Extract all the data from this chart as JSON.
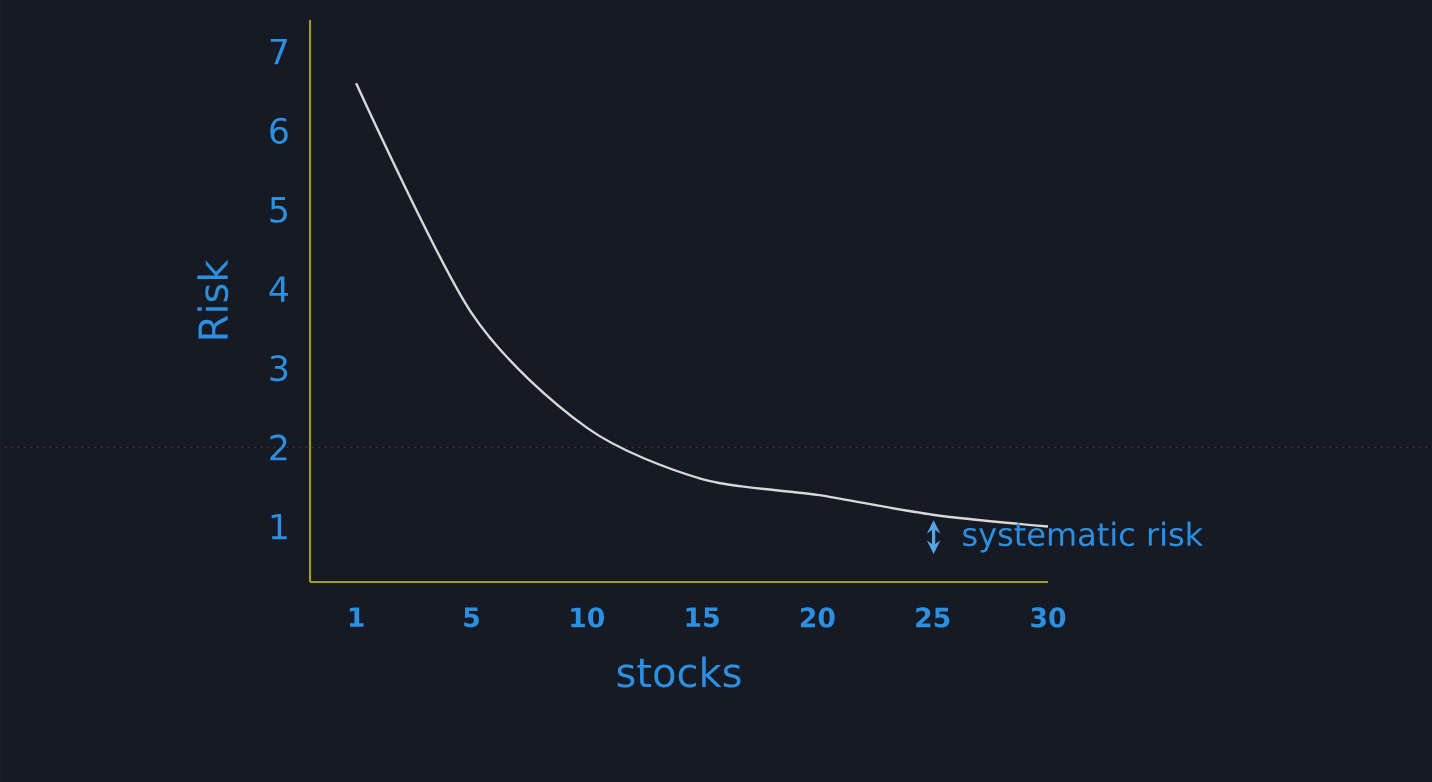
{
  "chart_data": {
    "type": "line",
    "xlabel": "stocks",
    "ylabel": "Risk",
    "categories": [
      "1",
      "5",
      "10",
      "15",
      "20",
      "25",
      "30"
    ],
    "series": [
      {
        "color": "#d8d8d8",
        "values": [
          6.6,
          3.7,
          2.25,
          1.6,
          1.4,
          1.15,
          1.0
        ]
      }
    ],
    "ylim": [
      0.3,
      7.4
    ],
    "yticks": [
      1,
      2,
      3,
      4,
      5,
      6,
      7
    ],
    "ref_lines": [
      {
        "axis": "y",
        "value": 2,
        "color": "#8a3040",
        "line_style": "dotted"
      }
    ],
    "annotations": [
      "systematic risk"
    ],
    "grid": false,
    "marker": "none",
    "line_style": "solid"
  }
}
